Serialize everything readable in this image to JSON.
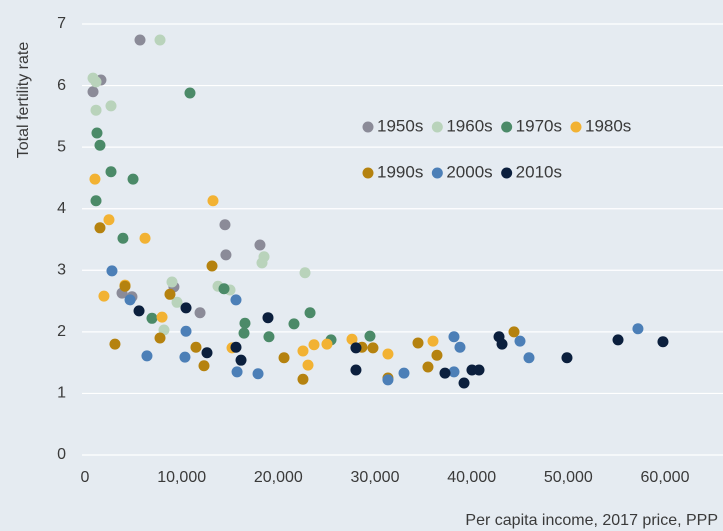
{
  "chart_data": {
    "type": "scatter",
    "y_label": "Total fertility rate",
    "x_label": "Per capita income, 2017 price, PPP",
    "xlim": [
      0,
      60000
    ],
    "ylim": [
      0,
      7
    ],
    "xticks": [
      0,
      {
        "value": 10000,
        "label": "10,000"
      },
      {
        "value": 20000,
        "label": "20,000"
      },
      {
        "value": 30000,
        "label": "30,000"
      },
      {
        "value": 40000,
        "label": "40,000"
      },
      {
        "value": 50000,
        "label": "50,000"
      },
      {
        "value": 60000,
        "label": "60,000"
      }
    ],
    "yticks": [
      0,
      1,
      2,
      3,
      4,
      5,
      6,
      7
    ],
    "grid": true,
    "series": [
      {
        "name": "1950s",
        "color": "#8b8b98",
        "x": [
          5690,
          830,
          1650,
          14480,
          14580,
          18100,
          9200,
          11900,
          3830,
          4860
        ],
        "values": [
          6.74,
          5.9,
          6.09,
          3.74,
          3.25,
          3.41,
          2.73,
          2.31,
          2.63,
          2.57
        ]
      },
      {
        "name": "1960s",
        "color": "#b9d3bb",
        "x": [
          7760,
          830,
          1140,
          1140,
          2690,
          9000,
          9520,
          8170,
          13760,
          15000,
          18520,
          18310,
          22760
        ],
        "values": [
          6.74,
          6.12,
          6.06,
          5.6,
          5.67,
          2.81,
          2.48,
          2.03,
          2.74,
          2.68,
          3.22,
          3.12,
          2.96
        ]
      },
      {
        "name": "1970s",
        "color": "#4b8a68",
        "x": [
          10860,
          1240,
          1550,
          2690,
          4970,
          1140,
          3930,
          14380,
          16550,
          16450,
          6930,
          19030,
          21620,
          23280,
          25450,
          29480
        ],
        "values": [
          5.88,
          5.23,
          5.03,
          4.6,
          4.48,
          4.13,
          3.52,
          2.7,
          2.14,
          1.98,
          2.22,
          1.92,
          2.13,
          2.31,
          1.87,
          1.93
        ]
      },
      {
        "name": "1980s",
        "color": "#f2b233",
        "x": [
          1030,
          2480,
          6210,
          1960,
          4140,
          7970,
          13240,
          15210,
          22550,
          23690,
          25030,
          27620,
          31340,
          36000,
          23070
        ],
        "values": [
          4.48,
          3.82,
          3.52,
          2.58,
          2.76,
          2.24,
          4.13,
          1.74,
          1.69,
          1.79,
          1.8,
          1.88,
          1.64,
          1.85,
          1.46
        ]
      },
      {
        "name": "1990s",
        "color": "#b5820f",
        "x": [
          1550,
          3100,
          4140,
          8790,
          7760,
          11480,
          12310,
          13140,
          20590,
          22550,
          28650,
          29790,
          31340,
          34450,
          35480,
          36410,
          44380
        ],
        "values": [
          3.69,
          1.8,
          2.74,
          2.61,
          1.9,
          1.75,
          1.45,
          3.07,
          1.58,
          1.23,
          1.75,
          1.74,
          1.25,
          1.82,
          1.43,
          1.62,
          2.0
        ]
      },
      {
        "name": "2000s",
        "color": "#4c7fb7",
        "x": [
          2790,
          4660,
          6410,
          10450,
          10340,
          15620,
          15730,
          17900,
          31340,
          33000,
          38170,
          38790,
          38170,
          45000,
          45930,
          57200
        ],
        "values": [
          2.99,
          2.52,
          1.61,
          2.01,
          1.59,
          2.52,
          1.35,
          1.32,
          1.22,
          1.33,
          1.92,
          1.75,
          1.35,
          1.85,
          1.58,
          2.05
        ]
      },
      {
        "name": "2010s",
        "color": "#0b1f3d",
        "x": [
          5590,
          10450,
          12620,
          15620,
          16140,
          18930,
          28030,
          28030,
          37240,
          39210,
          40030,
          40760,
          42830,
          43140,
          49860,
          55140,
          59790
        ],
        "values": [
          2.34,
          2.39,
          1.66,
          1.75,
          1.54,
          2.23,
          1.74,
          1.38,
          1.33,
          1.17,
          1.38,
          1.38,
          1.92,
          1.8,
          1.58,
          1.87,
          1.84
        ]
      }
    ]
  }
}
